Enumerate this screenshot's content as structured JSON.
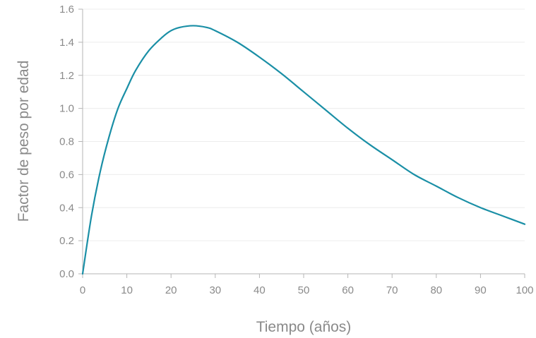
{
  "chart_data": {
    "type": "line",
    "title": "",
    "xlabel": "Tiempo (años)",
    "ylabel": "Factor de peso por edad",
    "xlim": [
      0,
      100
    ],
    "ylim": [
      0,
      1.6
    ],
    "xticks": [
      0,
      10,
      20,
      30,
      40,
      50,
      60,
      70,
      80,
      90,
      100
    ],
    "yticks": [
      0.0,
      0.2,
      0.4,
      0.6,
      0.8,
      1.0,
      1.2,
      1.4,
      1.6
    ],
    "xtick_labels": [
      "0",
      "10",
      "20",
      "30",
      "40",
      "50",
      "60",
      "70",
      "80",
      "90",
      "100"
    ],
    "ytick_labels": [
      "0.0",
      "0.2",
      "0.4",
      "0.6",
      "0.8",
      "1.0",
      "1.2",
      "1.4",
      "1.6"
    ],
    "grid": true,
    "legend": "none",
    "series": [
      {
        "color": "#1a8fa6",
        "x": [
          0,
          2,
          4,
          6,
          8,
          10,
          12,
          15,
          18,
          20,
          22,
          25,
          28,
          30,
          35,
          40,
          45,
          50,
          55,
          60,
          65,
          70,
          75,
          80,
          85,
          90,
          95,
          100
        ],
        "y": [
          0.0,
          0.35,
          0.62,
          0.83,
          1.0,
          1.12,
          1.23,
          1.35,
          1.43,
          1.47,
          1.49,
          1.5,
          1.49,
          1.47,
          1.4,
          1.31,
          1.21,
          1.1,
          0.99,
          0.88,
          0.78,
          0.69,
          0.6,
          0.53,
          0.46,
          0.4,
          0.35,
          0.3
        ]
      }
    ]
  }
}
